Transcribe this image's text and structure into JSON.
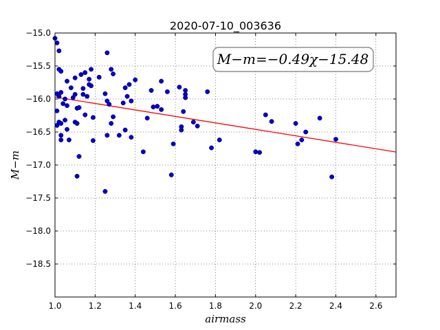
{
  "chart_data": {
    "type": "scatter",
    "title": "2020-07-10_003636",
    "xlabel": "airmass",
    "ylabel": "M−m",
    "xlim": [
      1.0,
      2.7
    ],
    "ylim": [
      -15.0,
      -19.0
    ],
    "y_inverted": true,
    "grid": true,
    "x_ticks": [
      "1.0",
      "1.2",
      "1.4",
      "1.6",
      "1.8",
      "2.0",
      "2.2",
      "2.4",
      "2.6"
    ],
    "y_ticks": [
      "−15.0",
      "−15.5",
      "−16.0",
      "−16.5",
      "−17.0",
      "−17.5",
      "−18.0",
      "−18.5"
    ],
    "annotation": "M−m=−0.49χ−15.48",
    "fit": {
      "slope": -0.49,
      "intercept": -15.48,
      "color": "#ff0000"
    },
    "point_color": "#0000cc",
    "points": [
      [
        1.0,
        -15.08
      ],
      [
        1.01,
        -15.15
      ],
      [
        1.02,
        -15.27
      ],
      [
        1.02,
        -15.55
      ],
      [
        1.03,
        -15.58
      ],
      [
        1.01,
        -15.92
      ],
      [
        1.03,
        -15.9
      ],
      [
        1.02,
        -15.96
      ],
      [
        1.04,
        -16.07
      ],
      [
        1.05,
        -16.0
      ],
      [
        1.01,
        -16.18
      ],
      [
        1.06,
        -16.1
      ],
      [
        1.02,
        -16.35
      ],
      [
        1.01,
        -16.4
      ],
      [
        1.03,
        -16.37
      ],
      [
        1.05,
        -16.32
      ],
      [
        1.03,
        -16.55
      ],
      [
        1.03,
        -16.62
      ],
      [
        1.06,
        -16.46
      ],
      [
        1.07,
        -16.62
      ],
      [
        1.06,
        -15.73
      ],
      [
        1.08,
        -15.83
      ],
      [
        1.09,
        -15.98
      ],
      [
        1.1,
        -15.93
      ],
      [
        1.1,
        -15.68
      ],
      [
        1.1,
        -16.35
      ],
      [
        1.11,
        -16.37
      ],
      [
        1.11,
        -16.14
      ],
      [
        1.12,
        -16.13
      ],
      [
        1.12,
        -16.87
      ],
      [
        1.11,
        -17.17
      ],
      [
        1.13,
        -15.63
      ],
      [
        1.14,
        -15.84
      ],
      [
        1.14,
        -15.93
      ],
      [
        1.15,
        -15.6
      ],
      [
        1.15,
        -16.24
      ],
      [
        1.16,
        -15.96
      ],
      [
        1.17,
        -15.7
      ],
      [
        1.17,
        -15.78
      ],
      [
        1.18,
        -15.8
      ],
      [
        1.18,
        -15.55
      ],
      [
        1.19,
        -16.28
      ],
      [
        1.19,
        -16.63
      ],
      [
        1.22,
        -15.67
      ],
      [
        1.25,
        -15.92
      ],
      [
        1.26,
        -15.3
      ],
      [
        1.26,
        -16.03
      ],
      [
        1.27,
        -16.08
      ],
      [
        1.26,
        -16.55
      ],
      [
        1.25,
        -17.4
      ],
      [
        1.28,
        -15.55
      ],
      [
        1.29,
        -15.62
      ],
      [
        1.29,
        -16.27
      ],
      [
        1.28,
        -16.37
      ],
      [
        1.32,
        -16.55
      ],
      [
        1.34,
        -16.06
      ],
      [
        1.35,
        -16.47
      ],
      [
        1.35,
        -15.83
      ],
      [
        1.36,
        -15.96
      ],
      [
        1.37,
        -15.78
      ],
      [
        1.38,
        -16.03
      ],
      [
        1.38,
        -16.58
      ],
      [
        1.4,
        -15.71
      ],
      [
        1.44,
        -16.8
      ],
      [
        1.46,
        -16.29
      ],
      [
        1.48,
        -15.87
      ],
      [
        1.49,
        -16.12
      ],
      [
        1.51,
        -16.11
      ],
      [
        1.53,
        -15.73
      ],
      [
        1.53,
        -16.16
      ],
      [
        1.56,
        -15.89
      ],
      [
        1.58,
        -17.15
      ],
      [
        1.59,
        -16.68
      ],
      [
        1.62,
        -15.82
      ],
      [
        1.63,
        -16.47
      ],
      [
        1.63,
        -16.42
      ],
      [
        1.64,
        -16.19
      ],
      [
        1.65,
        -15.87
      ],
      [
        1.65,
        -15.93
      ],
      [
        1.65,
        -15.98
      ],
      [
        1.69,
        -16.35
      ],
      [
        1.71,
        -16.41
      ],
      [
        1.76,
        -15.89
      ],
      [
        1.78,
        -16.74
      ],
      [
        1.82,
        -16.62
      ],
      [
        2.0,
        -16.8
      ],
      [
        2.02,
        -16.81
      ],
      [
        2.05,
        -16.24
      ],
      [
        2.08,
        -16.34
      ],
      [
        2.2,
        -16.37
      ],
      [
        2.21,
        -16.68
      ],
      [
        2.23,
        -16.62
      ],
      [
        2.25,
        -16.5
      ],
      [
        2.32,
        -16.29
      ],
      [
        2.38,
        -17.18
      ],
      [
        2.4,
        -16.61
      ]
    ]
  }
}
